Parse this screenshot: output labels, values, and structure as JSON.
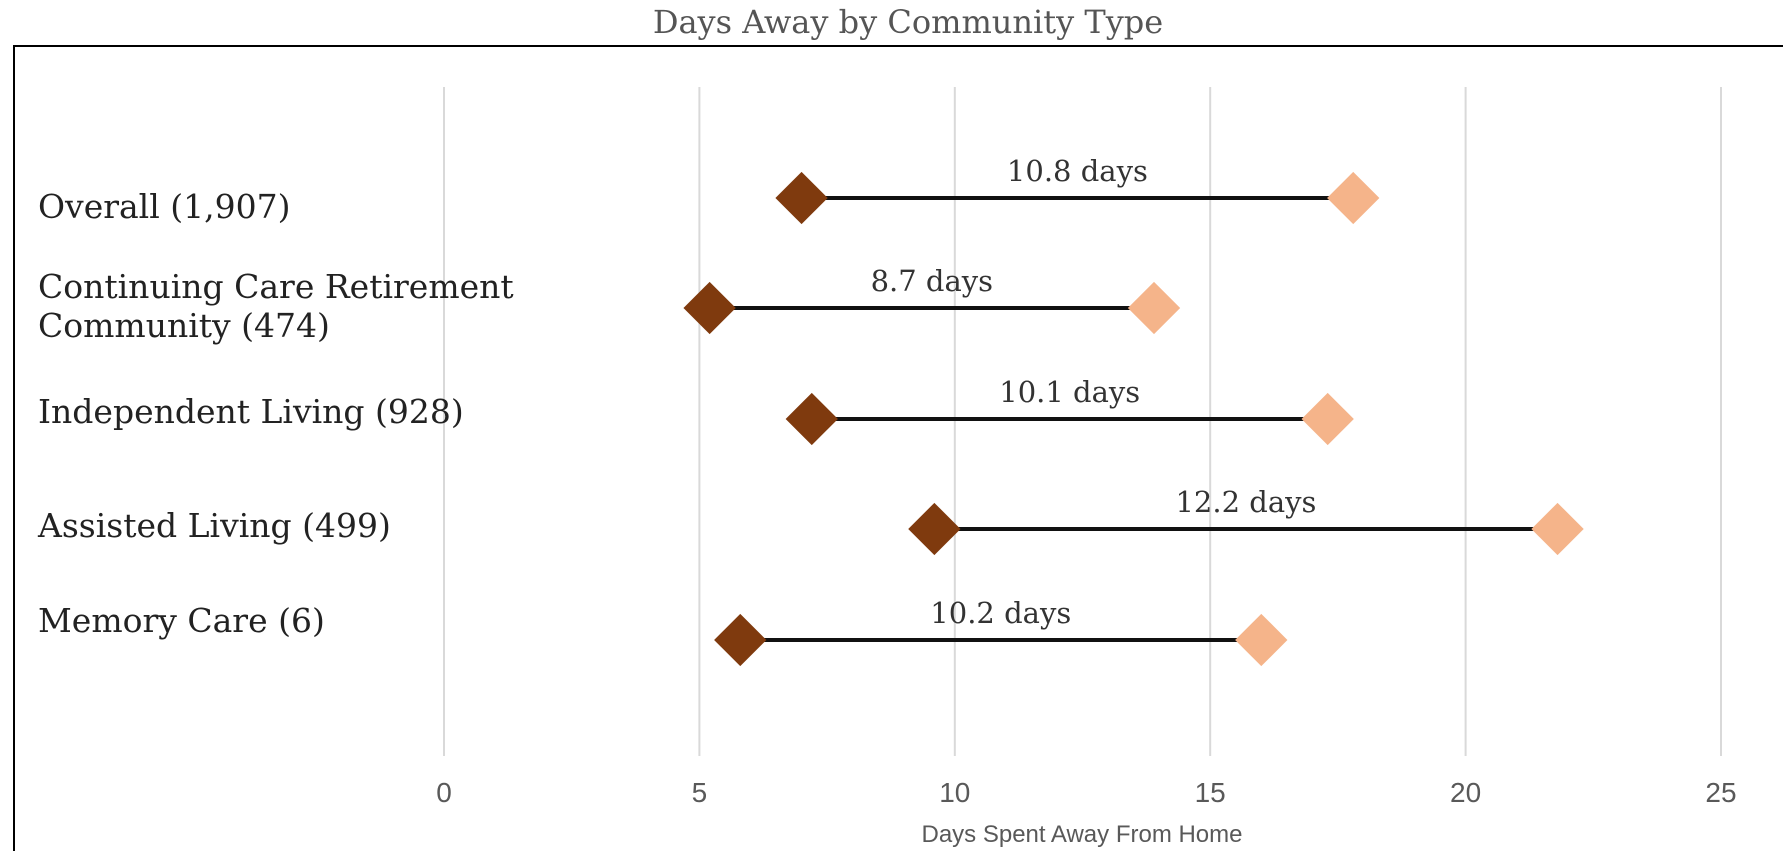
{
  "chart_data": {
    "type": "dumbbell",
    "title": "Days Away by Community Type",
    "xlabel": "Days Spent Away From Home",
    "ylabel": "",
    "xlim": [
      0,
      25
    ],
    "x_ticks": [
      0,
      5,
      10,
      15,
      20,
      25
    ],
    "grid": true,
    "legend": "none",
    "colors": {
      "start_marker": "#7f3a0e",
      "end_marker": "#f5b48a",
      "connector": "#111111",
      "gridline": "#d9d9d9",
      "frame": "#000000",
      "title_text": "#555555",
      "tick_text": "#595959",
      "category_text": "#222222"
    },
    "categories": [
      "Overall (1,907)",
      "Continuing Care Retirement Community (474)",
      "Independent Living (928)",
      "Assisted Living (499)",
      "Memory Care (6)"
    ],
    "start": [
      7.0,
      5.2,
      7.2,
      9.6,
      5.8
    ],
    "end": [
      17.8,
      13.9,
      17.3,
      21.8,
      16.0
    ],
    "labels": [
      "10.8 days",
      "8.7 days",
      "10.1 days",
      "12.2 days",
      "10.2 days"
    ]
  }
}
